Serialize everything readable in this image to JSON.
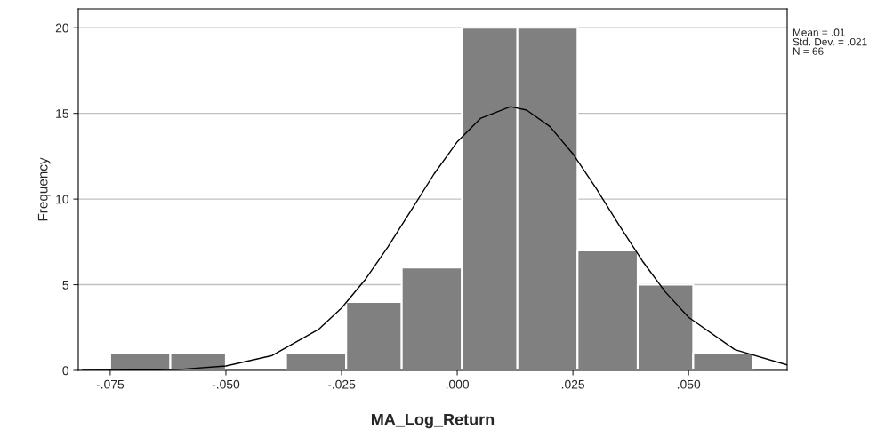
{
  "chart_data": {
    "type": "histogram",
    "xlabel": "MA_Log_Return",
    "ylabel": "Frequency",
    "bins": [
      -0.075,
      -0.062,
      -0.05,
      -0.037,
      -0.024,
      -0.012,
      0.001,
      0.013,
      0.026,
      0.039,
      0.051,
      0.064
    ],
    "values": [
      1,
      1,
      0,
      1,
      4,
      6,
      20,
      20,
      7,
      5,
      1
    ],
    "color": "#808080",
    "series": [
      {
        "type": "line",
        "color": "#000000",
        "x": [
          -0.081,
          -0.07,
          -0.06,
          -0.05,
          -0.04,
          -0.03,
          -0.025,
          -0.02,
          -0.015,
          -0.01,
          -0.005,
          0.0,
          0.005,
          0.0115,
          0.015,
          0.02,
          0.025,
          0.03,
          0.035,
          0.04,
          0.045,
          0.05,
          0.06,
          0.0713
        ],
        "values": [
          0.0,
          0.01,
          0.06,
          0.26,
          0.87,
          2.39,
          3.64,
          5.26,
          7.2,
          9.33,
          11.47,
          13.34,
          14.7,
          15.39,
          15.19,
          14.24,
          12.64,
          10.63,
          8.47,
          6.39,
          4.57,
          3.1,
          1.21,
          0.32
        ]
      }
    ],
    "xlim": [
      -0.0819,
      0.0713
    ],
    "xticks": [
      {
        "value": -0.075,
        "label": "-.075"
      },
      {
        "value": -0.05,
        "label": "-.050"
      },
      {
        "value": -0.025,
        "label": "-.025"
      },
      {
        "value": 0.0,
        "label": ".000"
      },
      {
        "value": 0.025,
        "label": ".025"
      },
      {
        "value": 0.05,
        "label": ".050"
      }
    ],
    "ylim": [
      0,
      21.1
    ],
    "yticks": [
      0,
      5,
      10,
      15,
      20
    ],
    "grid": "y",
    "annotations": [
      "Mean = .01\nStd. Dev. = .021\nN = 66"
    ]
  }
}
